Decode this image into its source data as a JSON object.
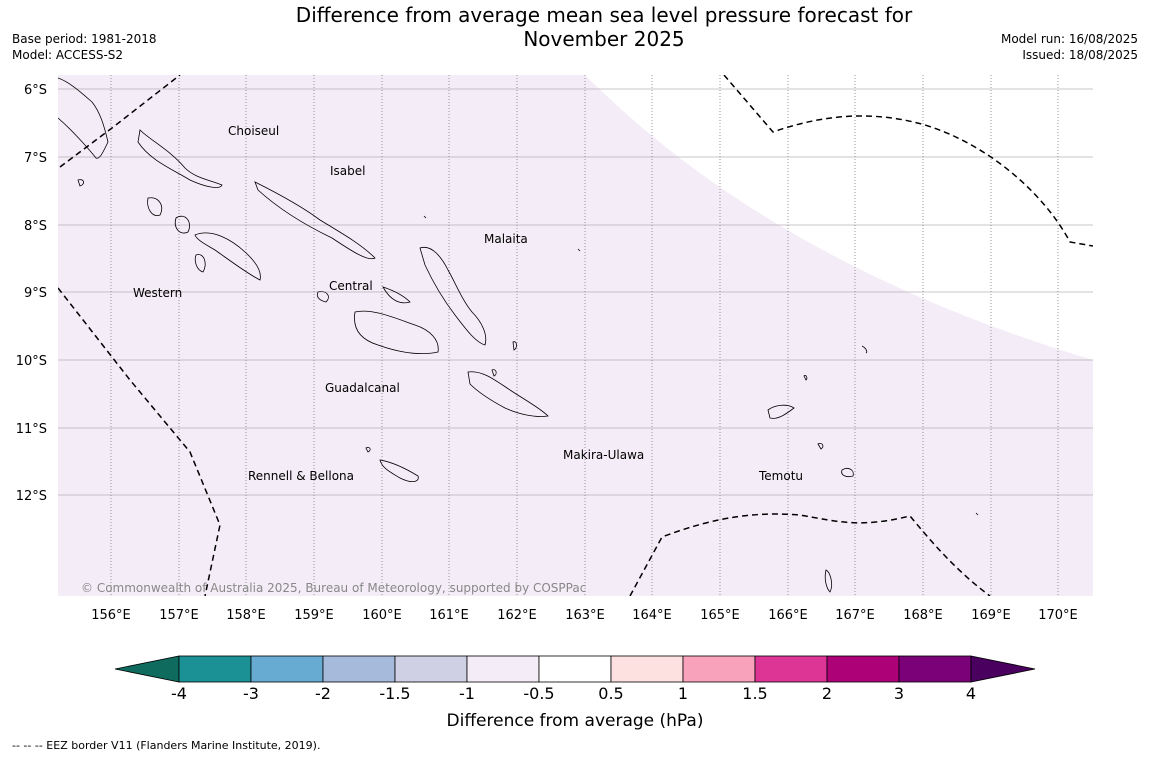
{
  "title_line1": "Difference from average mean sea level pressure forecast for",
  "title_line2": "November 2025",
  "base_period": "Base period: 1981-2018",
  "model": "Model: ACCESS-S2",
  "model_run": "Model run: 16/08/2025",
  "issued": "Issued: 18/08/2025",
  "lat_labels": [
    "6°S",
    "7°S",
    "8°S",
    "9°S",
    "10°S",
    "11°S",
    "12°S"
  ],
  "lon_labels": [
    "156°E",
    "157°E",
    "158°E",
    "159°E",
    "160°E",
    "161°E",
    "162°E",
    "163°E",
    "164°E",
    "165°E",
    "166°E",
    "167°E",
    "168°E",
    "169°E",
    "170°E"
  ],
  "places": [
    "Choiseul",
    "Isabel",
    "Malaita",
    "Western",
    "Central",
    "Guadalcanal",
    "Makira-Ulawa",
    "Rennell & Bellona",
    "Temotu"
  ],
  "copyright": "© Commonwealth of Australia 2025, Bureau of Meteorology, supported by COSPPac",
  "colorbar": {
    "title": "Difference from average (hPa)",
    "ticks": [
      "-4",
      "-3",
      "-2",
      "-1.5",
      "-1",
      "-0.5",
      "0.5",
      "1",
      "1.5",
      "2",
      "3",
      "4"
    ],
    "colors": [
      "#1b9196",
      "#67abd3",
      "#a6badc",
      "#cfd0e4",
      "#f4ecf6",
      "#ffffff",
      "#fde0e0",
      "#f9a2bc",
      "#dd3596",
      "#ad0178",
      "#7a0177"
    ],
    "under_color": "#0e6b5e",
    "over_color": "#49005f"
  },
  "map_fill": {
    "dominant": "#f4ecf6",
    "secondary": "#ffffff"
  },
  "footnote": "--  --  -- EEZ border V11 (Flanders Marine Institute, 2019)."
}
